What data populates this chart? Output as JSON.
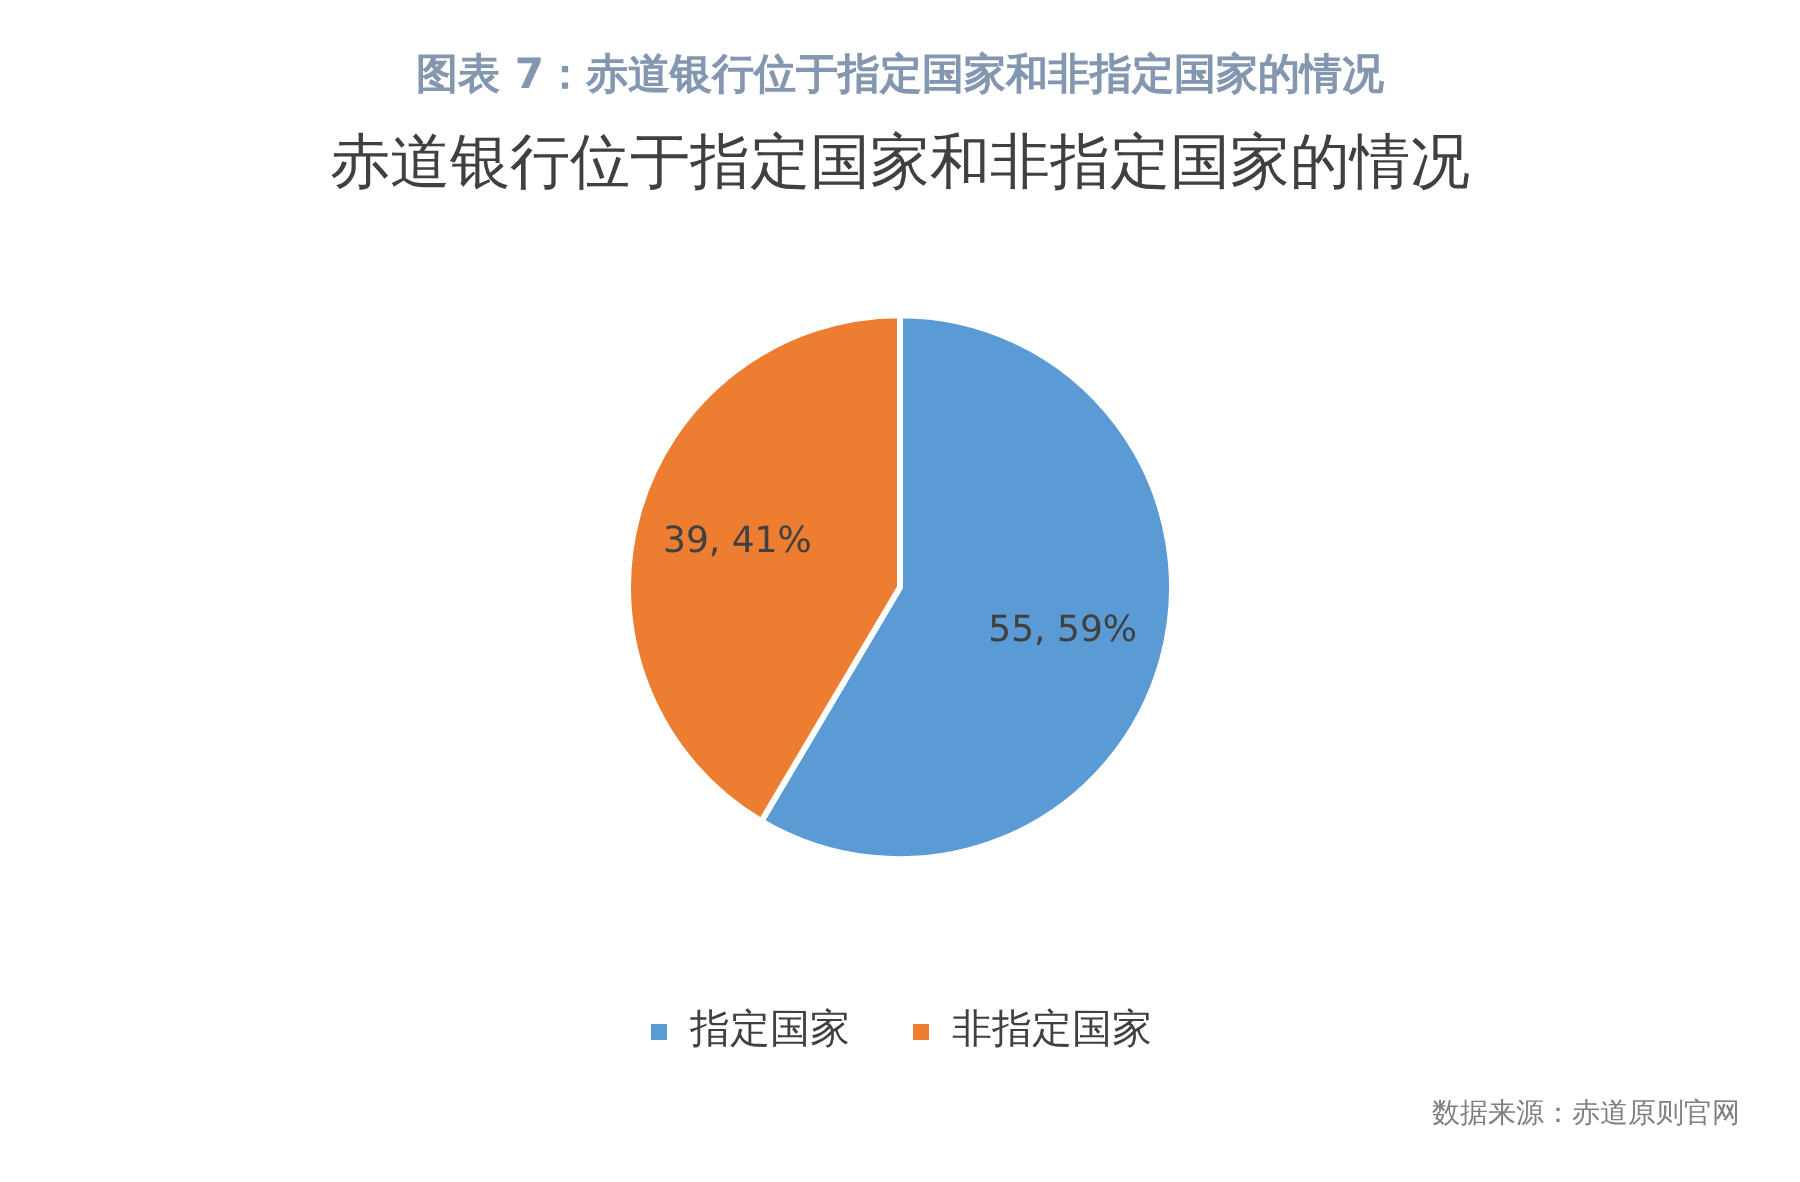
{
  "chart_data": {
    "type": "pie",
    "title": "图表 7：赤道银行位于指定国家和非指定国家的情况",
    "subtitle": "赤道银行位于指定国家和非指定国家的情况",
    "categories": [
      "指定国家",
      "非指定国家"
    ],
    "values": [
      55,
      39
    ],
    "colors": [
      "#5b9bd5",
      "#ed7d31"
    ],
    "value_labels": [
      "55, 59%",
      "39, 41%"
    ],
    "legend": "bottom",
    "annotations": [
      "数据来源：赤道原则官网"
    ]
  }
}
